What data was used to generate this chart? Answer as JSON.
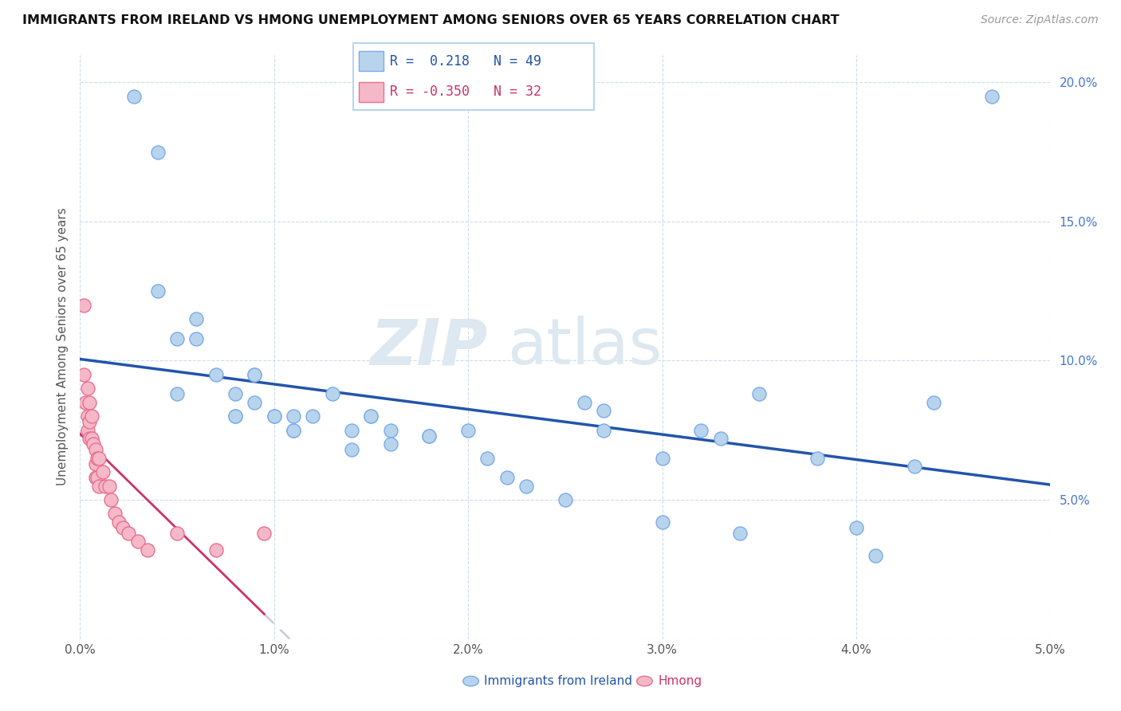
{
  "title": "IMMIGRANTS FROM IRELAND VS HMONG UNEMPLOYMENT AMONG SENIORS OVER 65 YEARS CORRELATION CHART",
  "source": "Source: ZipAtlas.com",
  "ylabel": "Unemployment Among Seniors over 65 years",
  "xlim": [
    0.0,
    0.05
  ],
  "ylim": [
    0.0,
    0.21
  ],
  "xticks": [
    0.0,
    0.01,
    0.02,
    0.03,
    0.04,
    0.05
  ],
  "xticklabels": [
    "0.0%",
    "1.0%",
    "2.0%",
    "3.0%",
    "4.0%",
    "5.0%"
  ],
  "yticks": [
    0.0,
    0.05,
    0.1,
    0.15,
    0.2
  ],
  "yticklabels": [
    "",
    "5.0%",
    "10.0%",
    "15.0%",
    "20.0%"
  ],
  "blue_r": 0.218,
  "blue_n": 49,
  "pink_r": -0.35,
  "pink_n": 32,
  "blue_color": "#b8d4ed",
  "blue_edge": "#7aabe8",
  "pink_color": "#f5b8c8",
  "pink_edge": "#e87090",
  "blue_line_color": "#2255aa",
  "pink_line_color": "#cc3366",
  "pink_dash_color": "#ccccdd",
  "watermark_color": "#dde8f0",
  "blue_x": [
    0.0028,
    0.004,
    0.004,
    0.005,
    0.005,
    0.006,
    0.006,
    0.007,
    0.008,
    0.008,
    0.008,
    0.009,
    0.009,
    0.009,
    0.01,
    0.01,
    0.011,
    0.011,
    0.011,
    0.012,
    0.013,
    0.014,
    0.014,
    0.015,
    0.015,
    0.016,
    0.016,
    0.018,
    0.018,
    0.02,
    0.021,
    0.022,
    0.023,
    0.025,
    0.026,
    0.027,
    0.027,
    0.03,
    0.03,
    0.032,
    0.033,
    0.034,
    0.035,
    0.038,
    0.04,
    0.041,
    0.043,
    0.044,
    0.047
  ],
  "blue_y": [
    0.195,
    0.175,
    0.125,
    0.108,
    0.088,
    0.115,
    0.108,
    0.095,
    0.088,
    0.08,
    0.08,
    0.095,
    0.095,
    0.085,
    0.08,
    0.08,
    0.08,
    0.075,
    0.075,
    0.08,
    0.088,
    0.075,
    0.068,
    0.08,
    0.08,
    0.075,
    0.07,
    0.073,
    0.073,
    0.075,
    0.065,
    0.058,
    0.055,
    0.05,
    0.085,
    0.082,
    0.075,
    0.065,
    0.042,
    0.075,
    0.072,
    0.038,
    0.088,
    0.065,
    0.04,
    0.03,
    0.062,
    0.085,
    0.195
  ],
  "pink_x": [
    0.0002,
    0.0002,
    0.0003,
    0.0004,
    0.0004,
    0.0004,
    0.0005,
    0.0005,
    0.0005,
    0.0006,
    0.0006,
    0.0007,
    0.0008,
    0.0008,
    0.0008,
    0.0009,
    0.0009,
    0.001,
    0.001,
    0.0012,
    0.0013,
    0.0015,
    0.0016,
    0.0018,
    0.002,
    0.0022,
    0.0025,
    0.003,
    0.0035,
    0.005,
    0.007,
    0.0095
  ],
  "pink_y": [
    0.12,
    0.095,
    0.085,
    0.09,
    0.08,
    0.075,
    0.085,
    0.078,
    0.072,
    0.08,
    0.072,
    0.07,
    0.068,
    0.063,
    0.058,
    0.065,
    0.058,
    0.065,
    0.055,
    0.06,
    0.055,
    0.055,
    0.05,
    0.045,
    0.042,
    0.04,
    0.038,
    0.035,
    0.032,
    0.038,
    0.032,
    0.038
  ]
}
